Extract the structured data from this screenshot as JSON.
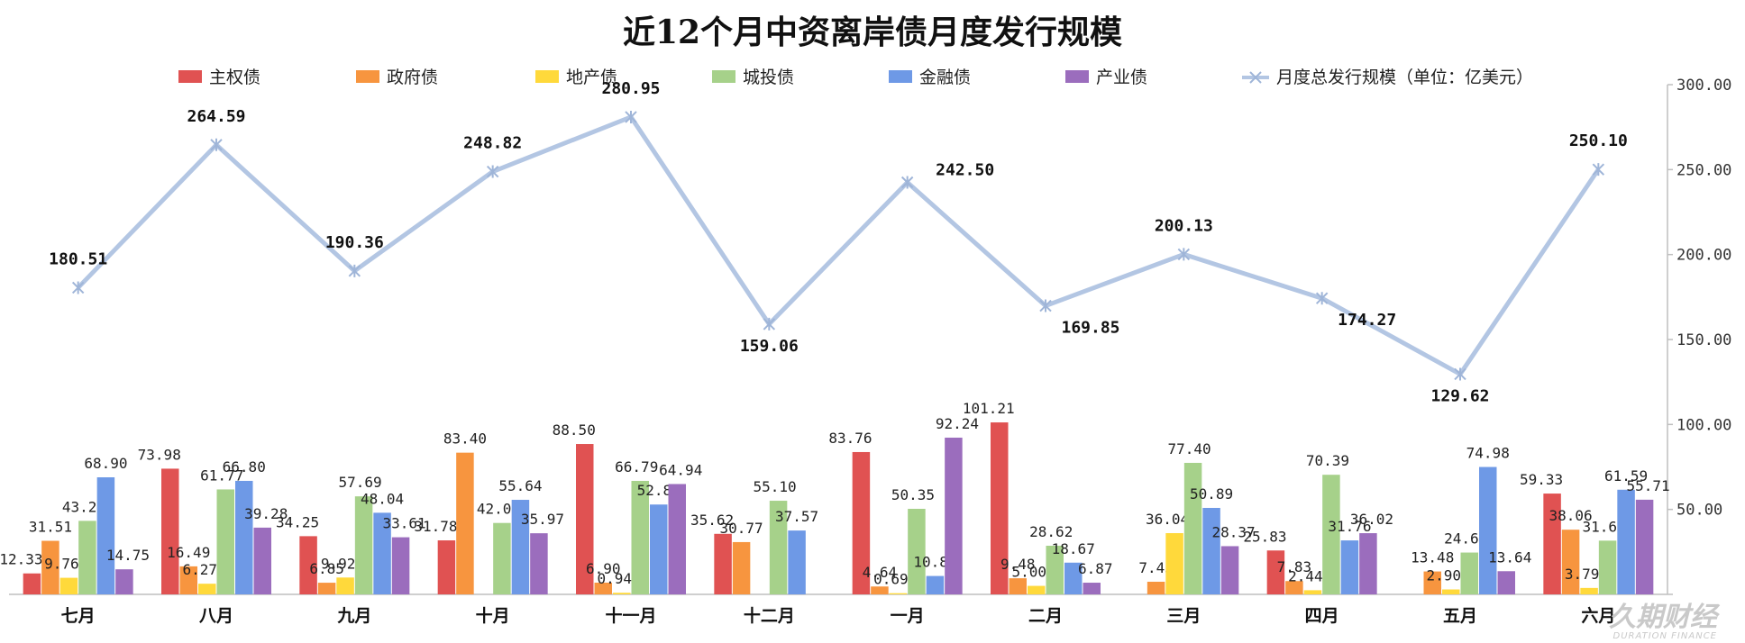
{
  "chart_data": {
    "type": "bar",
    "title": "近12个月中资离岸债月度发行规模",
    "categories": [
      "七月",
      "八月",
      "九月",
      "十月",
      "十一月",
      "十二月",
      "一月",
      "二月",
      "三月",
      "四月",
      "五月",
      "六月"
    ],
    "series": [
      {
        "name": "主权债",
        "color": "#e05252",
        "values": [
          12.33,
          73.98,
          34.25,
          31.78,
          88.5,
          35.62,
          83.76,
          101.21,
          null,
          25.83,
          null,
          59.33
        ],
        "labels": [
          "12.33",
          "73.98",
          "34.25",
          "31.78",
          "88.50",
          "35.62",
          "83.76",
          "101.21",
          "",
          "25.83",
          "",
          "59.33"
        ]
      },
      {
        "name": "政府债",
        "color": "#f7953f",
        "values": [
          31.51,
          16.49,
          6.85,
          83.4,
          6.9,
          30.77,
          4.64,
          9.48,
          7.43,
          7.83,
          13.48,
          38.06
        ],
        "labels": [
          "31.51",
          "16.49",
          "6.85",
          "83.40",
          "6.90",
          "30.77",
          "4.64",
          "9.48",
          "7.43",
          "7.83",
          "13.48",
          "38.06"
        ]
      },
      {
        "name": "地产债",
        "color": "#ffd93b",
        "values": [
          9.76,
          6.27,
          9.92,
          null,
          0.94,
          null,
          0.69,
          5.0,
          36.04,
          2.44,
          2.9,
          3.79
        ],
        "labels": [
          "9.76",
          "6.27",
          "9.92",
          "",
          "0.94",
          "",
          "0.69",
          "5.00",
          "36.04",
          "2.44",
          "2.90",
          "3.79"
        ]
      },
      {
        "name": "城投债",
        "color": "#a6d18a",
        "values": [
          43.26,
          61.77,
          57.69,
          42.03,
          66.79,
          55.1,
          50.35,
          28.62,
          77.4,
          70.39,
          24.62,
          31.62
        ],
        "labels": [
          "43.26",
          "61.77",
          "57.69",
          "42.03",
          "66.79",
          "55.10",
          "50.35",
          "28.62",
          "77.40",
          "70.39",
          "24.62",
          "31.62"
        ]
      },
      {
        "name": "金融债",
        "color": "#6e99e6",
        "values": [
          68.9,
          66.8,
          48.04,
          55.64,
          52.88,
          37.57,
          10.82,
          18.67,
          50.89,
          31.76,
          74.98,
          61.59
        ],
        "labels": [
          "68.90",
          "66.80",
          "48.04",
          "55.64",
          "52.88",
          "37.57",
          "10.82",
          "18.67",
          "50.89",
          "31.76",
          "74.98",
          "61.59"
        ]
      },
      {
        "name": "产业债",
        "color": "#9b6dbd",
        "values": [
          14.75,
          39.28,
          33.61,
          35.97,
          64.94,
          null,
          92.24,
          6.87,
          28.37,
          36.02,
          13.64,
          55.71
        ],
        "labels": [
          "14.75",
          "39.28",
          "33.61",
          "35.97",
          "64.94",
          "",
          "92.24",
          "6.87",
          "28.37",
          "36.02",
          "13.64",
          "55.71"
        ]
      }
    ],
    "line_series": {
      "name": "月度总发行规模（单位：亿美元）",
      "color": "#b3c6e3",
      "values": [
        180.51,
        264.59,
        190.36,
        248.82,
        280.95,
        159.06,
        242.5,
        169.85,
        200.13,
        174.27,
        129.62,
        250.1
      ],
      "labels": [
        "180.51",
        "264.59",
        "190.36",
        "248.82",
        "280.95",
        "159.06",
        "242.50",
        "169.85",
        "200.13",
        "174.27",
        "129.62",
        "250.10"
      ]
    },
    "y_axis": {
      "position": "right",
      "min": 0,
      "max": 300,
      "step": 50,
      "tick_labels": [
        "",
        "50.00",
        "100.00",
        "150.00",
        "200.00",
        "250.00",
        "300.00"
      ]
    },
    "legend_position": "top",
    "grid": false
  },
  "watermark": {
    "main": "久期财经",
    "sub": "DURATION FINANCE"
  }
}
